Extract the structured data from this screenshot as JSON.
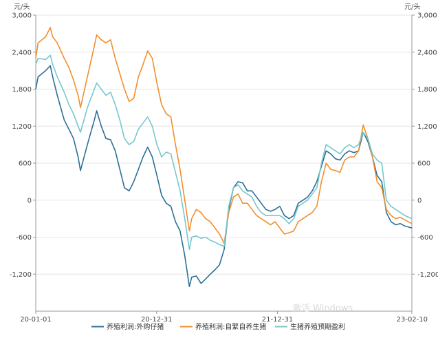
{
  "chart_data": {
    "type": "line",
    "title": "",
    "y_unit_left": "元/头",
    "y_unit_right": "元/头",
    "ylim": [
      -1800,
      3000
    ],
    "y_ticks": [
      3000,
      2400,
      1800,
      1200,
      600,
      0,
      -600,
      -1200
    ],
    "y_tick_labels": [
      "3,000",
      "2,400",
      "1,800",
      "1,200",
      "600",
      "0",
      "-600",
      "-1,200"
    ],
    "x_start": "2020-01-01",
    "x_end": "2023-02-10",
    "x_ticks": [
      "2020-01-01",
      "2020-12-31",
      "2021-12-31",
      "2023-02-10"
    ],
    "x_tick_labels": [
      "20-01-01",
      "20-12-31",
      "21-12-31",
      "23-02-10"
    ],
    "grid": true,
    "legend_position": "bottom",
    "watermark": "激活 Windows",
    "series": [
      {
        "name": "养殖利润:外购仔猪",
        "color": "#2b6f97",
        "points": [
          [
            "2020-01-01",
            1800
          ],
          [
            "2020-01-08",
            2000
          ],
          [
            "2020-01-31",
            2100
          ],
          [
            "2020-02-14",
            2180
          ],
          [
            "2020-02-21",
            2000
          ],
          [
            "2020-03-06",
            1700
          ],
          [
            "2020-03-27",
            1300
          ],
          [
            "2020-04-10",
            1150
          ],
          [
            "2020-04-24",
            1000
          ],
          [
            "2020-05-08",
            700
          ],
          [
            "2020-05-15",
            480
          ],
          [
            "2020-06-05",
            900
          ],
          [
            "2020-06-26",
            1300
          ],
          [
            "2020-07-03",
            1450
          ],
          [
            "2020-07-17",
            1200
          ],
          [
            "2020-07-31",
            1000
          ],
          [
            "2020-08-14",
            980
          ],
          [
            "2020-08-28",
            800
          ],
          [
            "2020-09-11",
            500
          ],
          [
            "2020-09-25",
            200
          ],
          [
            "2020-10-09",
            150
          ],
          [
            "2020-10-23",
            300
          ],
          [
            "2020-11-06",
            500
          ],
          [
            "2020-11-20",
            700
          ],
          [
            "2020-12-04",
            860
          ],
          [
            "2020-12-18",
            700
          ],
          [
            "2021-01-01",
            400
          ],
          [
            "2021-01-15",
            80
          ],
          [
            "2021-01-29",
            -50
          ],
          [
            "2021-02-12",
            -100
          ],
          [
            "2021-02-26",
            -350
          ],
          [
            "2021-03-12",
            -500
          ],
          [
            "2021-03-26",
            -900
          ],
          [
            "2021-04-09",
            -1400
          ],
          [
            "2021-04-16",
            -1250
          ],
          [
            "2021-04-30",
            -1230
          ],
          [
            "2021-05-14",
            -1350
          ],
          [
            "2021-05-28",
            -1280
          ],
          [
            "2021-06-11",
            -1200
          ],
          [
            "2021-06-25",
            -1130
          ],
          [
            "2021-07-09",
            -1050
          ],
          [
            "2021-07-23",
            -800
          ],
          [
            "2021-08-06",
            -150
          ],
          [
            "2021-08-20",
            200
          ],
          [
            "2021-09-03",
            300
          ],
          [
            "2021-09-17",
            280
          ],
          [
            "2021-10-01",
            150
          ],
          [
            "2021-10-15",
            150
          ],
          [
            "2021-10-29",
            50
          ],
          [
            "2021-11-12",
            -50
          ],
          [
            "2021-11-26",
            -150
          ],
          [
            "2021-12-10",
            -180
          ],
          [
            "2021-12-24",
            -150
          ],
          [
            "2022-01-07",
            -100
          ],
          [
            "2022-01-21",
            -250
          ],
          [
            "2022-02-04",
            -300
          ],
          [
            "2022-02-18",
            -250
          ],
          [
            "2022-03-04",
            -50
          ],
          [
            "2022-03-18",
            0
          ],
          [
            "2022-04-01",
            50
          ],
          [
            "2022-04-15",
            150
          ],
          [
            "2022-04-29",
            300
          ],
          [
            "2022-05-13",
            550
          ],
          [
            "2022-05-27",
            800
          ],
          [
            "2022-06-10",
            750
          ],
          [
            "2022-06-24",
            670
          ],
          [
            "2022-07-08",
            650
          ],
          [
            "2022-07-22",
            750
          ],
          [
            "2022-08-05",
            800
          ],
          [
            "2022-08-19",
            770
          ],
          [
            "2022-09-02",
            800
          ],
          [
            "2022-09-16",
            1100
          ],
          [
            "2022-09-30",
            950
          ],
          [
            "2022-10-14",
            700
          ],
          [
            "2022-10-28",
            400
          ],
          [
            "2022-11-11",
            300
          ],
          [
            "2022-11-25",
            -200
          ],
          [
            "2022-12-09",
            -350
          ],
          [
            "2022-12-23",
            -400
          ],
          [
            "2023-01-06",
            -380
          ],
          [
            "2023-01-20",
            -420
          ],
          [
            "2023-02-10",
            -450
          ]
        ]
      },
      {
        "name": "养殖利润:自繁自养生猪",
        "color": "#f28e2b",
        "points": [
          [
            "2020-01-01",
            2300
          ],
          [
            "2020-01-08",
            2550
          ],
          [
            "2020-01-31",
            2650
          ],
          [
            "2020-02-14",
            2800
          ],
          [
            "2020-02-21",
            2650
          ],
          [
            "2020-03-06",
            2550
          ],
          [
            "2020-03-27",
            2300
          ],
          [
            "2020-04-10",
            2150
          ],
          [
            "2020-04-24",
            1950
          ],
          [
            "2020-05-08",
            1700
          ],
          [
            "2020-05-15",
            1500
          ],
          [
            "2020-06-05",
            2000
          ],
          [
            "2020-06-26",
            2500
          ],
          [
            "2020-07-03",
            2680
          ],
          [
            "2020-07-17",
            2600
          ],
          [
            "2020-07-31",
            2550
          ],
          [
            "2020-08-14",
            2600
          ],
          [
            "2020-08-28",
            2300
          ],
          [
            "2020-09-11",
            2050
          ],
          [
            "2020-09-25",
            1800
          ],
          [
            "2020-10-09",
            1600
          ],
          [
            "2020-10-23",
            1650
          ],
          [
            "2020-11-06",
            2000
          ],
          [
            "2020-11-20",
            2200
          ],
          [
            "2020-12-04",
            2420
          ],
          [
            "2020-12-18",
            2300
          ],
          [
            "2021-01-01",
            1900
          ],
          [
            "2021-01-15",
            1550
          ],
          [
            "2021-01-29",
            1400
          ],
          [
            "2021-02-12",
            1350
          ],
          [
            "2021-02-26",
            900
          ],
          [
            "2021-03-12",
            500
          ],
          [
            "2021-03-26",
            0
          ],
          [
            "2021-04-09",
            -500
          ],
          [
            "2021-04-16",
            -300
          ],
          [
            "2021-04-30",
            -150
          ],
          [
            "2021-05-14",
            -200
          ],
          [
            "2021-05-28",
            -300
          ],
          [
            "2021-06-11",
            -350
          ],
          [
            "2021-06-25",
            -450
          ],
          [
            "2021-07-09",
            -550
          ],
          [
            "2021-07-23",
            -700
          ],
          [
            "2021-08-06",
            -200
          ],
          [
            "2021-08-20",
            50
          ],
          [
            "2021-09-03",
            100
          ],
          [
            "2021-09-17",
            -50
          ],
          [
            "2021-10-01",
            -50
          ],
          [
            "2021-10-15",
            -150
          ],
          [
            "2021-10-29",
            -250
          ],
          [
            "2021-11-12",
            -300
          ],
          [
            "2021-11-26",
            -350
          ],
          [
            "2021-12-10",
            -400
          ],
          [
            "2021-12-24",
            -350
          ],
          [
            "2022-01-07",
            -450
          ],
          [
            "2022-01-21",
            -550
          ],
          [
            "2022-02-04",
            -530
          ],
          [
            "2022-02-18",
            -500
          ],
          [
            "2022-03-04",
            -350
          ],
          [
            "2022-03-18",
            -300
          ],
          [
            "2022-04-01",
            -250
          ],
          [
            "2022-04-15",
            -200
          ],
          [
            "2022-04-29",
            -100
          ],
          [
            "2022-05-13",
            300
          ],
          [
            "2022-05-27",
            600
          ],
          [
            "2022-06-10",
            500
          ],
          [
            "2022-06-24",
            480
          ],
          [
            "2022-07-08",
            450
          ],
          [
            "2022-07-22",
            650
          ],
          [
            "2022-08-05",
            700
          ],
          [
            "2022-08-19",
            700
          ],
          [
            "2022-09-02",
            800
          ],
          [
            "2022-09-16",
            1220
          ],
          [
            "2022-09-30",
            1000
          ],
          [
            "2022-10-14",
            700
          ],
          [
            "2022-10-28",
            300
          ],
          [
            "2022-11-11",
            200
          ],
          [
            "2022-11-25",
            -150
          ],
          [
            "2022-12-09",
            -250
          ],
          [
            "2022-12-23",
            -300
          ],
          [
            "2023-01-06",
            -280
          ],
          [
            "2023-01-20",
            -320
          ],
          [
            "2023-02-10",
            -380
          ]
        ]
      },
      {
        "name": "生猪养殖预期盈利",
        "color": "#76c7cc",
        "points": [
          [
            "2020-01-01",
            2200
          ],
          [
            "2020-01-08",
            2300
          ],
          [
            "2020-01-31",
            2280
          ],
          [
            "2020-02-14",
            2350
          ],
          [
            "2020-02-21",
            2200
          ],
          [
            "2020-03-06",
            2000
          ],
          [
            "2020-03-27",
            1750
          ],
          [
            "2020-04-10",
            1550
          ],
          [
            "2020-04-24",
            1400
          ],
          [
            "2020-05-08",
            1200
          ],
          [
            "2020-05-15",
            1100
          ],
          [
            "2020-06-05",
            1500
          ],
          [
            "2020-06-26",
            1800
          ],
          [
            "2020-07-03",
            1900
          ],
          [
            "2020-07-17",
            1800
          ],
          [
            "2020-07-31",
            1700
          ],
          [
            "2020-08-14",
            1750
          ],
          [
            "2020-08-28",
            1550
          ],
          [
            "2020-09-11",
            1300
          ],
          [
            "2020-09-25",
            1000
          ],
          [
            "2020-10-09",
            900
          ],
          [
            "2020-10-23",
            950
          ],
          [
            "2020-11-06",
            1150
          ],
          [
            "2020-11-20",
            1250
          ],
          [
            "2020-12-04",
            1350
          ],
          [
            "2020-12-18",
            1200
          ],
          [
            "2021-01-01",
            900
          ],
          [
            "2021-01-15",
            700
          ],
          [
            "2021-01-29",
            780
          ],
          [
            "2021-02-12",
            750
          ],
          [
            "2021-02-26",
            450
          ],
          [
            "2021-03-12",
            150
          ],
          [
            "2021-03-26",
            -300
          ],
          [
            "2021-04-09",
            -800
          ],
          [
            "2021-04-16",
            -600
          ],
          [
            "2021-04-30",
            -580
          ],
          [
            "2021-05-14",
            -620
          ],
          [
            "2021-05-28",
            -600
          ],
          [
            "2021-06-11",
            -650
          ],
          [
            "2021-06-25",
            -680
          ],
          [
            "2021-07-09",
            -720
          ],
          [
            "2021-07-23",
            -750
          ],
          [
            "2021-08-06",
            -100
          ],
          [
            "2021-08-20",
            200
          ],
          [
            "2021-09-03",
            250
          ],
          [
            "2021-09-17",
            150
          ],
          [
            "2021-10-01",
            100
          ],
          [
            "2021-10-15",
            50
          ],
          [
            "2021-10-29",
            -100
          ],
          [
            "2021-11-12",
            -200
          ],
          [
            "2021-11-26",
            -250
          ],
          [
            "2021-12-10",
            -250
          ],
          [
            "2021-12-24",
            -250
          ],
          [
            "2022-01-07",
            -250
          ],
          [
            "2022-01-21",
            -300
          ],
          [
            "2022-02-04",
            -380
          ],
          [
            "2022-02-18",
            -300
          ],
          [
            "2022-03-04",
            -100
          ],
          [
            "2022-03-18",
            -50
          ],
          [
            "2022-04-01",
            0
          ],
          [
            "2022-04-15",
            100
          ],
          [
            "2022-04-29",
            200
          ],
          [
            "2022-05-13",
            600
          ],
          [
            "2022-05-27",
            900
          ],
          [
            "2022-06-10",
            850
          ],
          [
            "2022-06-24",
            800
          ],
          [
            "2022-07-08",
            750
          ],
          [
            "2022-07-22",
            850
          ],
          [
            "2022-08-05",
            900
          ],
          [
            "2022-08-19",
            850
          ],
          [
            "2022-09-02",
            900
          ],
          [
            "2022-09-16",
            1100
          ],
          [
            "2022-09-30",
            1000
          ],
          [
            "2022-10-14",
            750
          ],
          [
            "2022-10-28",
            650
          ],
          [
            "2022-11-11",
            600
          ],
          [
            "2022-11-25",
            0
          ],
          [
            "2022-12-09",
            -100
          ],
          [
            "2022-12-23",
            -150
          ],
          [
            "2023-01-06",
            -200
          ],
          [
            "2023-01-20",
            -250
          ],
          [
            "2023-02-10",
            -300
          ]
        ]
      }
    ]
  }
}
